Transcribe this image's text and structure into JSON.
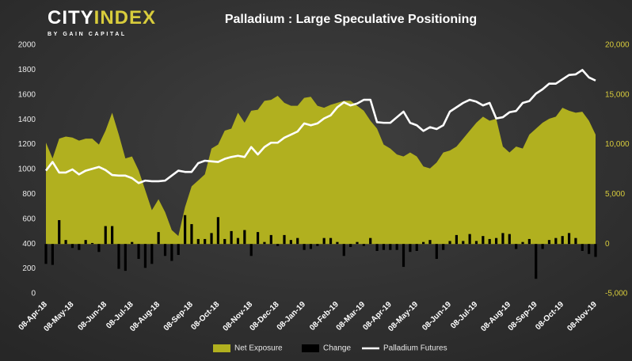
{
  "logo": {
    "parts": [
      "CITY",
      "INDEX"
    ],
    "tagline": "BY GAIN CAPITAL"
  },
  "chart_data": {
    "type": "combo",
    "title": "Palladium : Large Speculative Positioning",
    "categories": [
      "08-Apr-18",
      null,
      null,
      null,
      "08-May-18",
      null,
      null,
      null,
      null,
      "08-Jun-18",
      null,
      null,
      null,
      "08-Jul-18",
      null,
      null,
      null,
      "08-Aug-18",
      null,
      null,
      null,
      null,
      "08-Sep-18",
      null,
      null,
      null,
      "08-Oct-18",
      null,
      null,
      null,
      null,
      "08-Nov-18",
      null,
      null,
      null,
      "08-Dec-18",
      null,
      null,
      null,
      "08-Jan-19",
      null,
      null,
      null,
      null,
      "08-Feb-19",
      null,
      null,
      null,
      "08-Mar-19",
      null,
      null,
      null,
      "08-Apr-19",
      null,
      null,
      null,
      "08-May-19",
      null,
      null,
      null,
      null,
      "08-Jun-19",
      null,
      null,
      null,
      "08-Jul-19",
      null,
      null,
      null,
      null,
      "08-Aug-19",
      null,
      null,
      null,
      "08-Sep-19",
      null,
      null,
      null,
      "08-Oct-19",
      null,
      null,
      null,
      null,
      "08-Nov-19"
    ],
    "series": [
      {
        "name": "Net Exposure",
        "type": "area",
        "axis": "y2",
        "color": "#b1b01f",
        "values": [
          10200,
          8600,
          10600,
          10800,
          10700,
          10400,
          10600,
          10600,
          10000,
          11400,
          13200,
          11000,
          8600,
          8800,
          7400,
          5400,
          3400,
          4500,
          3200,
          1400,
          800,
          3700,
          5800,
          6400,
          7000,
          9600,
          10000,
          11400,
          11600,
          13200,
          12200,
          13400,
          13500,
          14400,
          14500,
          14900,
          14200,
          13900,
          13900,
          14700,
          14800,
          13900,
          13700,
          14000,
          14200,
          14400,
          14400,
          13900,
          13400,
          12400,
          11600,
          10000,
          9600,
          9000,
          8800,
          9200,
          8800,
          7800,
          7600,
          8200,
          9200,
          9400,
          9800,
          10600,
          11400,
          12200,
          12800,
          12400,
          12600,
          9800,
          9200,
          9800,
          9600,
          11000,
          11600,
          12200,
          12600,
          12800,
          13700,
          13400,
          13200,
          13300,
          12400,
          11000
        ]
      },
      {
        "name": "Change",
        "type": "bar",
        "axis": "y2",
        "color": "#000000",
        "values": [
          -2000,
          -2100,
          2400,
          400,
          -400,
          -600,
          400,
          100,
          -800,
          1800,
          1800,
          -2500,
          -2700,
          200,
          -1500,
          -2400,
          -2000,
          1200,
          -1200,
          -1700,
          -1100,
          2900,
          2000,
          500,
          500,
          1100,
          2700,
          500,
          1300,
          600,
          1400,
          -1200,
          1200,
          200,
          900,
          -200,
          900,
          400,
          600,
          -600,
          -500,
          -200,
          600,
          600,
          200,
          -1200,
          -300,
          200,
          -200,
          600,
          -700,
          -600,
          -600,
          -600,
          -2300,
          -800,
          -700,
          200,
          400,
          -1500,
          -600,
          300,
          900,
          300,
          1000,
          300,
          800,
          500,
          600,
          1100,
          1000,
          -500,
          200,
          500,
          -3500,
          -500,
          400,
          600,
          800,
          1100,
          600,
          -700,
          -1000,
          -1300
        ]
      },
      {
        "name": "Palladium Futures",
        "type": "line",
        "axis": "y",
        "color": "#ffffff",
        "values": [
          990,
          1060,
          975,
          975,
          1000,
          960,
          990,
          1005,
          1020,
          995,
          955,
          950,
          950,
          930,
          890,
          910,
          905,
          905,
          910,
          950,
          990,
          980,
          980,
          1050,
          1070,
          1065,
          1060,
          1085,
          1100,
          1110,
          1100,
          1180,
          1120,
          1180,
          1215,
          1215,
          1255,
          1280,
          1305,
          1370,
          1355,
          1370,
          1410,
          1435,
          1500,
          1540,
          1515,
          1530,
          1560,
          1560,
          1380,
          1375,
          1375,
          1420,
          1465,
          1375,
          1355,
          1310,
          1340,
          1325,
          1355,
          1465,
          1500,
          1535,
          1560,
          1545,
          1515,
          1535,
          1410,
          1420,
          1460,
          1470,
          1535,
          1550,
          1610,
          1645,
          1690,
          1690,
          1725,
          1760,
          1765,
          1800,
          1740,
          1715
        ]
      }
    ],
    "ylim": [
      0,
      2000
    ],
    "yticks": [
      0,
      200,
      400,
      600,
      800,
      1000,
      1200,
      1400,
      1600,
      1800,
      2000
    ],
    "y2lim": [
      -5000,
      20000
    ],
    "y2ticks": [
      {
        "value": -5000,
        "label": "-5,000"
      },
      0,
      {
        "value": 5000,
        "label": "5,000"
      },
      {
        "value": 10000,
        "label": "10,000"
      },
      {
        "value": 15000,
        "label": "15,000"
      },
      {
        "value": 20000,
        "label": "20,000"
      }
    ],
    "y2_color": "#d8cc3c",
    "grid": false,
    "legend": "bottom"
  }
}
